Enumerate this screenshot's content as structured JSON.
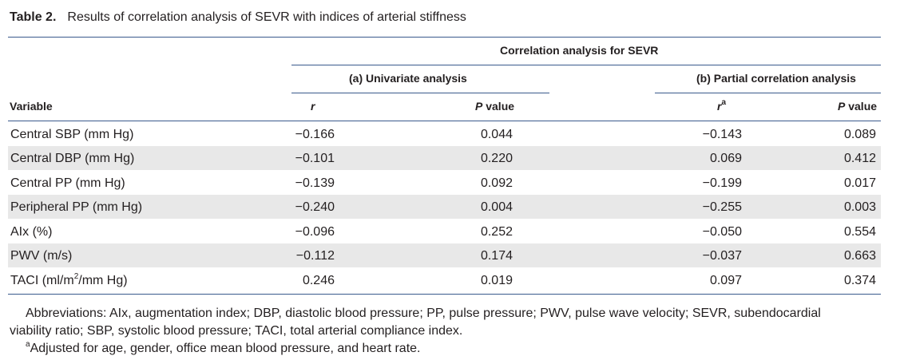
{
  "caption": {
    "label": "Table 2.",
    "title": "Results of correlation analysis of SEVR with indices of arterial stiffness"
  },
  "header": {
    "group": "Correlation analysis for SEVR",
    "sub_a": "(a) Univariate analysis",
    "sub_b": "(b) Partial correlation analysis",
    "variable": "Variable",
    "r": "r",
    "p_value_italic": "P",
    "p_value_rest": " value",
    "ra": "r",
    "ra_sup": "a"
  },
  "rows": [
    {
      "variable": "Central SBP (mm Hg)",
      "r1": "−0.166",
      "p1": "0.044",
      "r2": "−0.143",
      "p2": "0.089"
    },
    {
      "variable": "Central DBP (mm Hg)",
      "r1": "−0.101",
      "p1": "0.220",
      "r2": "0.069",
      "p2": "0.412"
    },
    {
      "variable": "Central PP (mm Hg)",
      "r1": "−0.139",
      "p1": "0.092",
      "r2": "−0.199",
      "p2": "0.017"
    },
    {
      "variable": "Peripheral PP (mm Hg)",
      "r1": "−0.240",
      "p1": "0.004",
      "r2": "−0.255",
      "p2": "0.003"
    },
    {
      "variable": "AIx (%)",
      "r1": "−0.096",
      "p1": "0.252",
      "r2": "−0.050",
      "p2": "0.554"
    },
    {
      "variable": "PWV (m/s)",
      "r1": "−0.112",
      "p1": "0.174",
      "r2": "−0.037",
      "p2": "0.663"
    },
    {
      "variable": "TACI (ml/m",
      "variable_sup": "2",
      "variable_rest": "/mm Hg)",
      "r1": "0.246",
      "p1": "0.019",
      "r2": "0.097",
      "p2": "0.374"
    }
  ],
  "footnotes": {
    "abbrev_line1": "Abbreviations: AIx, augmentation index; DBP, diastolic blood pressure; PP, pulse pressure; PWV, pulse wave velocity; SEVR, subendocardial",
    "abbrev_line2": "viability ratio; SBP, systolic blood pressure; TACI, total arterial compliance index.",
    "adj_sup": "a",
    "adj_text": "Adjusted for age, gender, office mean blood pressure, and heart rate."
  }
}
